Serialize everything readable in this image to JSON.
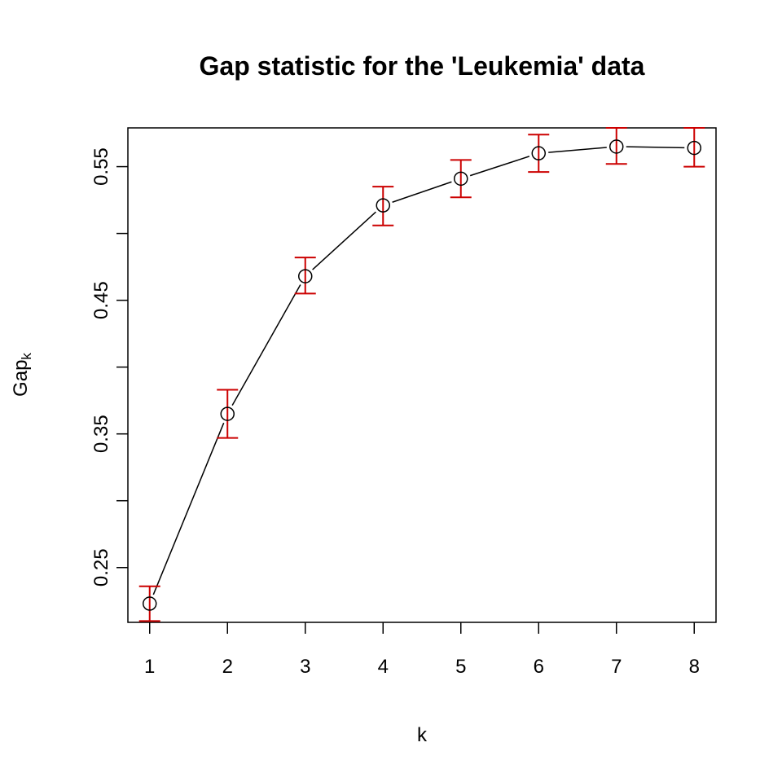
{
  "chart_data": {
    "type": "line",
    "title": "Gap statistic for the 'Leukemia' data",
    "xlabel": "k",
    "ylabel": "Gap",
    "ylabel_subscript": "k",
    "x": [
      1,
      2,
      3,
      4,
      5,
      6,
      7,
      8
    ],
    "series": [
      {
        "name": "Gap_k",
        "values": [
          0.223,
          0.365,
          0.468,
          0.521,
          0.541,
          0.56,
          0.565,
          0.564
        ],
        "error_lower": [
          0.21,
          0.347,
          0.455,
          0.506,
          0.527,
          0.546,
          0.552,
          0.55
        ],
        "error_upper": [
          0.236,
          0.383,
          0.482,
          0.535,
          0.555,
          0.574,
          0.579,
          0.579
        ],
        "marker": "open-circle",
        "line_color": "#000000",
        "error_bar_color": "#CC0000"
      }
    ],
    "xticks": [
      1,
      2,
      3,
      4,
      5,
      6,
      7,
      8
    ],
    "xtick_labels": [
      "1",
      "2",
      "3",
      "4",
      "5",
      "6",
      "7",
      "8"
    ],
    "yticks": [
      0.25,
      0.3,
      0.35,
      0.4,
      0.45,
      0.5,
      0.55
    ],
    "ytick_labels": [
      "0.25",
      "",
      "0.35",
      "",
      "0.45",
      "",
      "0.55"
    ],
    "xlim": [
      0.72,
      8.28
    ],
    "ylim": [
      0.209,
      0.579
    ],
    "grid": false,
    "legend": null
  }
}
